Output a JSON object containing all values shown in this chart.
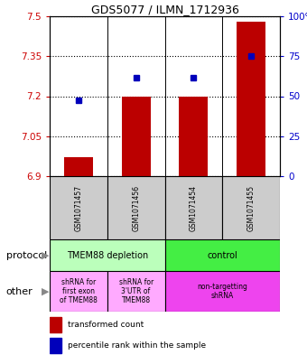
{
  "title": "GDS5077 / ILMN_1712936",
  "samples": [
    "GSM1071457",
    "GSM1071456",
    "GSM1071454",
    "GSM1071455"
  ],
  "bar_values": [
    6.97,
    7.2,
    7.2,
    7.48
  ],
  "bar_bottom": 6.9,
  "percentile_values": [
    7.185,
    7.27,
    7.27,
    7.35
  ],
  "ylim": [
    6.9,
    7.5
  ],
  "yticks_left": [
    6.9,
    7.05,
    7.2,
    7.35,
    7.5
  ],
  "yticks_right": [
    0,
    25,
    50,
    75,
    100
  ],
  "bar_color": "#bb0000",
  "dot_color": "#0000bb",
  "protocol_labels": [
    [
      "TMEM88 depletion",
      0,
      2
    ],
    [
      "control",
      2,
      4
    ]
  ],
  "protocol_colors": [
    "#bbffbb",
    "#44ee44"
  ],
  "other_labels": [
    [
      "shRNA for\nfirst exon\nof TMEM88",
      0,
      1
    ],
    [
      "shRNA for\n3'UTR of\nTMEM88",
      1,
      2
    ],
    [
      "non-targetting\nshRNA",
      2,
      4
    ]
  ],
  "other_colors": [
    "#ffaaff",
    "#ffaaff",
    "#ee44ee"
  ],
  "legend_red": "transformed count",
  "legend_blue": "percentile rank within the sample",
  "left_label_protocol": "protocol",
  "left_label_other": "other",
  "sample_box_color": "#cccccc",
  "bar_width": 0.5
}
